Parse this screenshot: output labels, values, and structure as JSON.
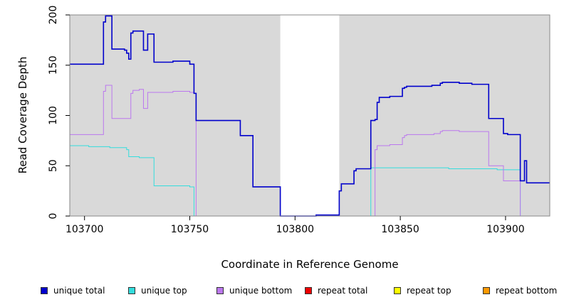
{
  "chart_data": {
    "type": "line",
    "title": "",
    "xlabel": "Coordinate in Reference Genome",
    "ylabel": "Read Coverage Depth",
    "xlim": [
      103693,
      103921
    ],
    "ylim": [
      0,
      200
    ],
    "xticks": [
      103700,
      103750,
      103800,
      103850,
      103900
    ],
    "yticks": [
      0,
      50,
      100,
      150,
      200
    ],
    "x_tick_labels": [
      "103700",
      "103750",
      "103800",
      "103850",
      "103900"
    ],
    "y_tick_labels": [
      "0",
      "50",
      "100",
      "150",
      "200"
    ],
    "background_color": "#d9d9d9",
    "gap_region": [
      103793,
      103821
    ],
    "legend_position": "bottom",
    "series": [
      {
        "name": "unique total",
        "color": "#0000cc",
        "points": [
          [
            103693,
            151
          ],
          [
            103709,
            151
          ],
          [
            103709,
            193
          ],
          [
            103710,
            193
          ],
          [
            103710,
            199
          ],
          [
            103713,
            199
          ],
          [
            103713,
            166
          ],
          [
            103719,
            166
          ],
          [
            103719,
            165
          ],
          [
            103720,
            165
          ],
          [
            103720,
            162
          ],
          [
            103721,
            162
          ],
          [
            103721,
            156
          ],
          [
            103722,
            156
          ],
          [
            103722,
            182
          ],
          [
            103723,
            182
          ],
          [
            103723,
            184
          ],
          [
            103728,
            184
          ],
          [
            103728,
            165
          ],
          [
            103730,
            165
          ],
          [
            103730,
            181
          ],
          [
            103733,
            181
          ],
          [
            103733,
            153
          ],
          [
            103742,
            153
          ],
          [
            103742,
            154
          ],
          [
            103750,
            154
          ],
          [
            103750,
            151
          ],
          [
            103752,
            151
          ],
          [
            103752,
            122
          ],
          [
            103753,
            122
          ],
          [
            103753,
            95
          ],
          [
            103774,
            95
          ],
          [
            103774,
            80
          ],
          [
            103780,
            80
          ],
          [
            103780,
            29
          ],
          [
            103793,
            29
          ],
          [
            103793,
            0
          ],
          [
            103810,
            0
          ],
          [
            103810,
            1
          ],
          [
            103821,
            1
          ],
          [
            103821,
            25
          ],
          [
            103822,
            25
          ],
          [
            103822,
            32
          ],
          [
            103828,
            32
          ],
          [
            103828,
            45
          ],
          [
            103829,
            45
          ],
          [
            103829,
            47
          ],
          [
            103836,
            47
          ],
          [
            103836,
            95
          ],
          [
            103838,
            95
          ],
          [
            103838,
            96
          ],
          [
            103839,
            96
          ],
          [
            103839,
            113
          ],
          [
            103840,
            113
          ],
          [
            103840,
            118
          ],
          [
            103845,
            118
          ],
          [
            103845,
            119
          ],
          [
            103851,
            119
          ],
          [
            103851,
            127
          ],
          [
            103852,
            127
          ],
          [
            103852,
            128
          ],
          [
            103853,
            128
          ],
          [
            103853,
            129
          ],
          [
            103865,
            129
          ],
          [
            103865,
            130
          ],
          [
            103869,
            130
          ],
          [
            103869,
            132
          ],
          [
            103870,
            132
          ],
          [
            103870,
            133
          ],
          [
            103878,
            133
          ],
          [
            103878,
            132
          ],
          [
            103884,
            132
          ],
          [
            103884,
            131
          ],
          [
            103892,
            131
          ],
          [
            103892,
            97
          ],
          [
            103899,
            97
          ],
          [
            103899,
            82
          ],
          [
            103901,
            82
          ],
          [
            103901,
            81
          ],
          [
            103907,
            81
          ],
          [
            103907,
            35
          ],
          [
            103909,
            35
          ],
          [
            103909,
            55
          ],
          [
            103910,
            55
          ],
          [
            103910,
            33
          ],
          [
            103921,
            33
          ]
        ]
      },
      {
        "name": "unique top",
        "color": "#33dddd",
        "points": [
          [
            103693,
            70
          ],
          [
            103702,
            70
          ],
          [
            103702,
            69
          ],
          [
            103712,
            69
          ],
          [
            103712,
            68
          ],
          [
            103720,
            68
          ],
          [
            103720,
            66
          ],
          [
            103721,
            66
          ],
          [
            103721,
            59
          ],
          [
            103726,
            59
          ],
          [
            103726,
            58
          ],
          [
            103733,
            58
          ],
          [
            103733,
            30
          ],
          [
            103750,
            30
          ],
          [
            103750,
            29
          ],
          [
            103752,
            29
          ],
          [
            103752,
            0
          ],
          [
            103836,
            0
          ],
          [
            103836,
            48
          ],
          [
            103873,
            48
          ],
          [
            103873,
            47
          ],
          [
            103896,
            47
          ],
          [
            103896,
            46
          ],
          [
            103907,
            46
          ],
          [
            103907,
            0
          ],
          [
            103921,
            0
          ]
        ]
      },
      {
        "name": "unique bottom",
        "color": "#bb77ee",
        "points": [
          [
            103693,
            81
          ],
          [
            103709,
            81
          ],
          [
            103709,
            124
          ],
          [
            103710,
            124
          ],
          [
            103710,
            130
          ],
          [
            103713,
            130
          ],
          [
            103713,
            97
          ],
          [
            103722,
            97
          ],
          [
            103722,
            122
          ],
          [
            103723,
            122
          ],
          [
            103723,
            125
          ],
          [
            103726,
            125
          ],
          [
            103726,
            126
          ],
          [
            103728,
            126
          ],
          [
            103728,
            107
          ],
          [
            103730,
            107
          ],
          [
            103730,
            123
          ],
          [
            103742,
            123
          ],
          [
            103742,
            124
          ],
          [
            103750,
            124
          ],
          [
            103750,
            123
          ],
          [
            103752,
            123
          ],
          [
            103752,
            122
          ],
          [
            103753,
            122
          ],
          [
            103753,
            0
          ],
          [
            103838,
            0
          ],
          [
            103838,
            66
          ],
          [
            103839,
            66
          ],
          [
            103839,
            70
          ],
          [
            103845,
            70
          ],
          [
            103845,
            71
          ],
          [
            103851,
            71
          ],
          [
            103851,
            78
          ],
          [
            103852,
            78
          ],
          [
            103852,
            80
          ],
          [
            103853,
            80
          ],
          [
            103853,
            81
          ],
          [
            103866,
            81
          ],
          [
            103866,
            82
          ],
          [
            103869,
            82
          ],
          [
            103869,
            84
          ],
          [
            103870,
            84
          ],
          [
            103870,
            85
          ],
          [
            103878,
            85
          ],
          [
            103878,
            84
          ],
          [
            103892,
            84
          ],
          [
            103892,
            50
          ],
          [
            103899,
            50
          ],
          [
            103899,
            35
          ],
          [
            103907,
            35
          ],
          [
            103907,
            0
          ],
          [
            103921,
            0
          ]
        ]
      },
      {
        "name": "repeat total",
        "color": "#ee0000",
        "points": [
          [
            103693,
            0
          ],
          [
            103921,
            0
          ]
        ]
      },
      {
        "name": "repeat top",
        "color": "#ffff00",
        "points": [
          [
            103693,
            0
          ],
          [
            103921,
            0
          ]
        ]
      },
      {
        "name": "repeat bottom",
        "color": "#ff9900",
        "points": [
          [
            103693,
            0
          ],
          [
            103921,
            0
          ]
        ]
      }
    ]
  }
}
